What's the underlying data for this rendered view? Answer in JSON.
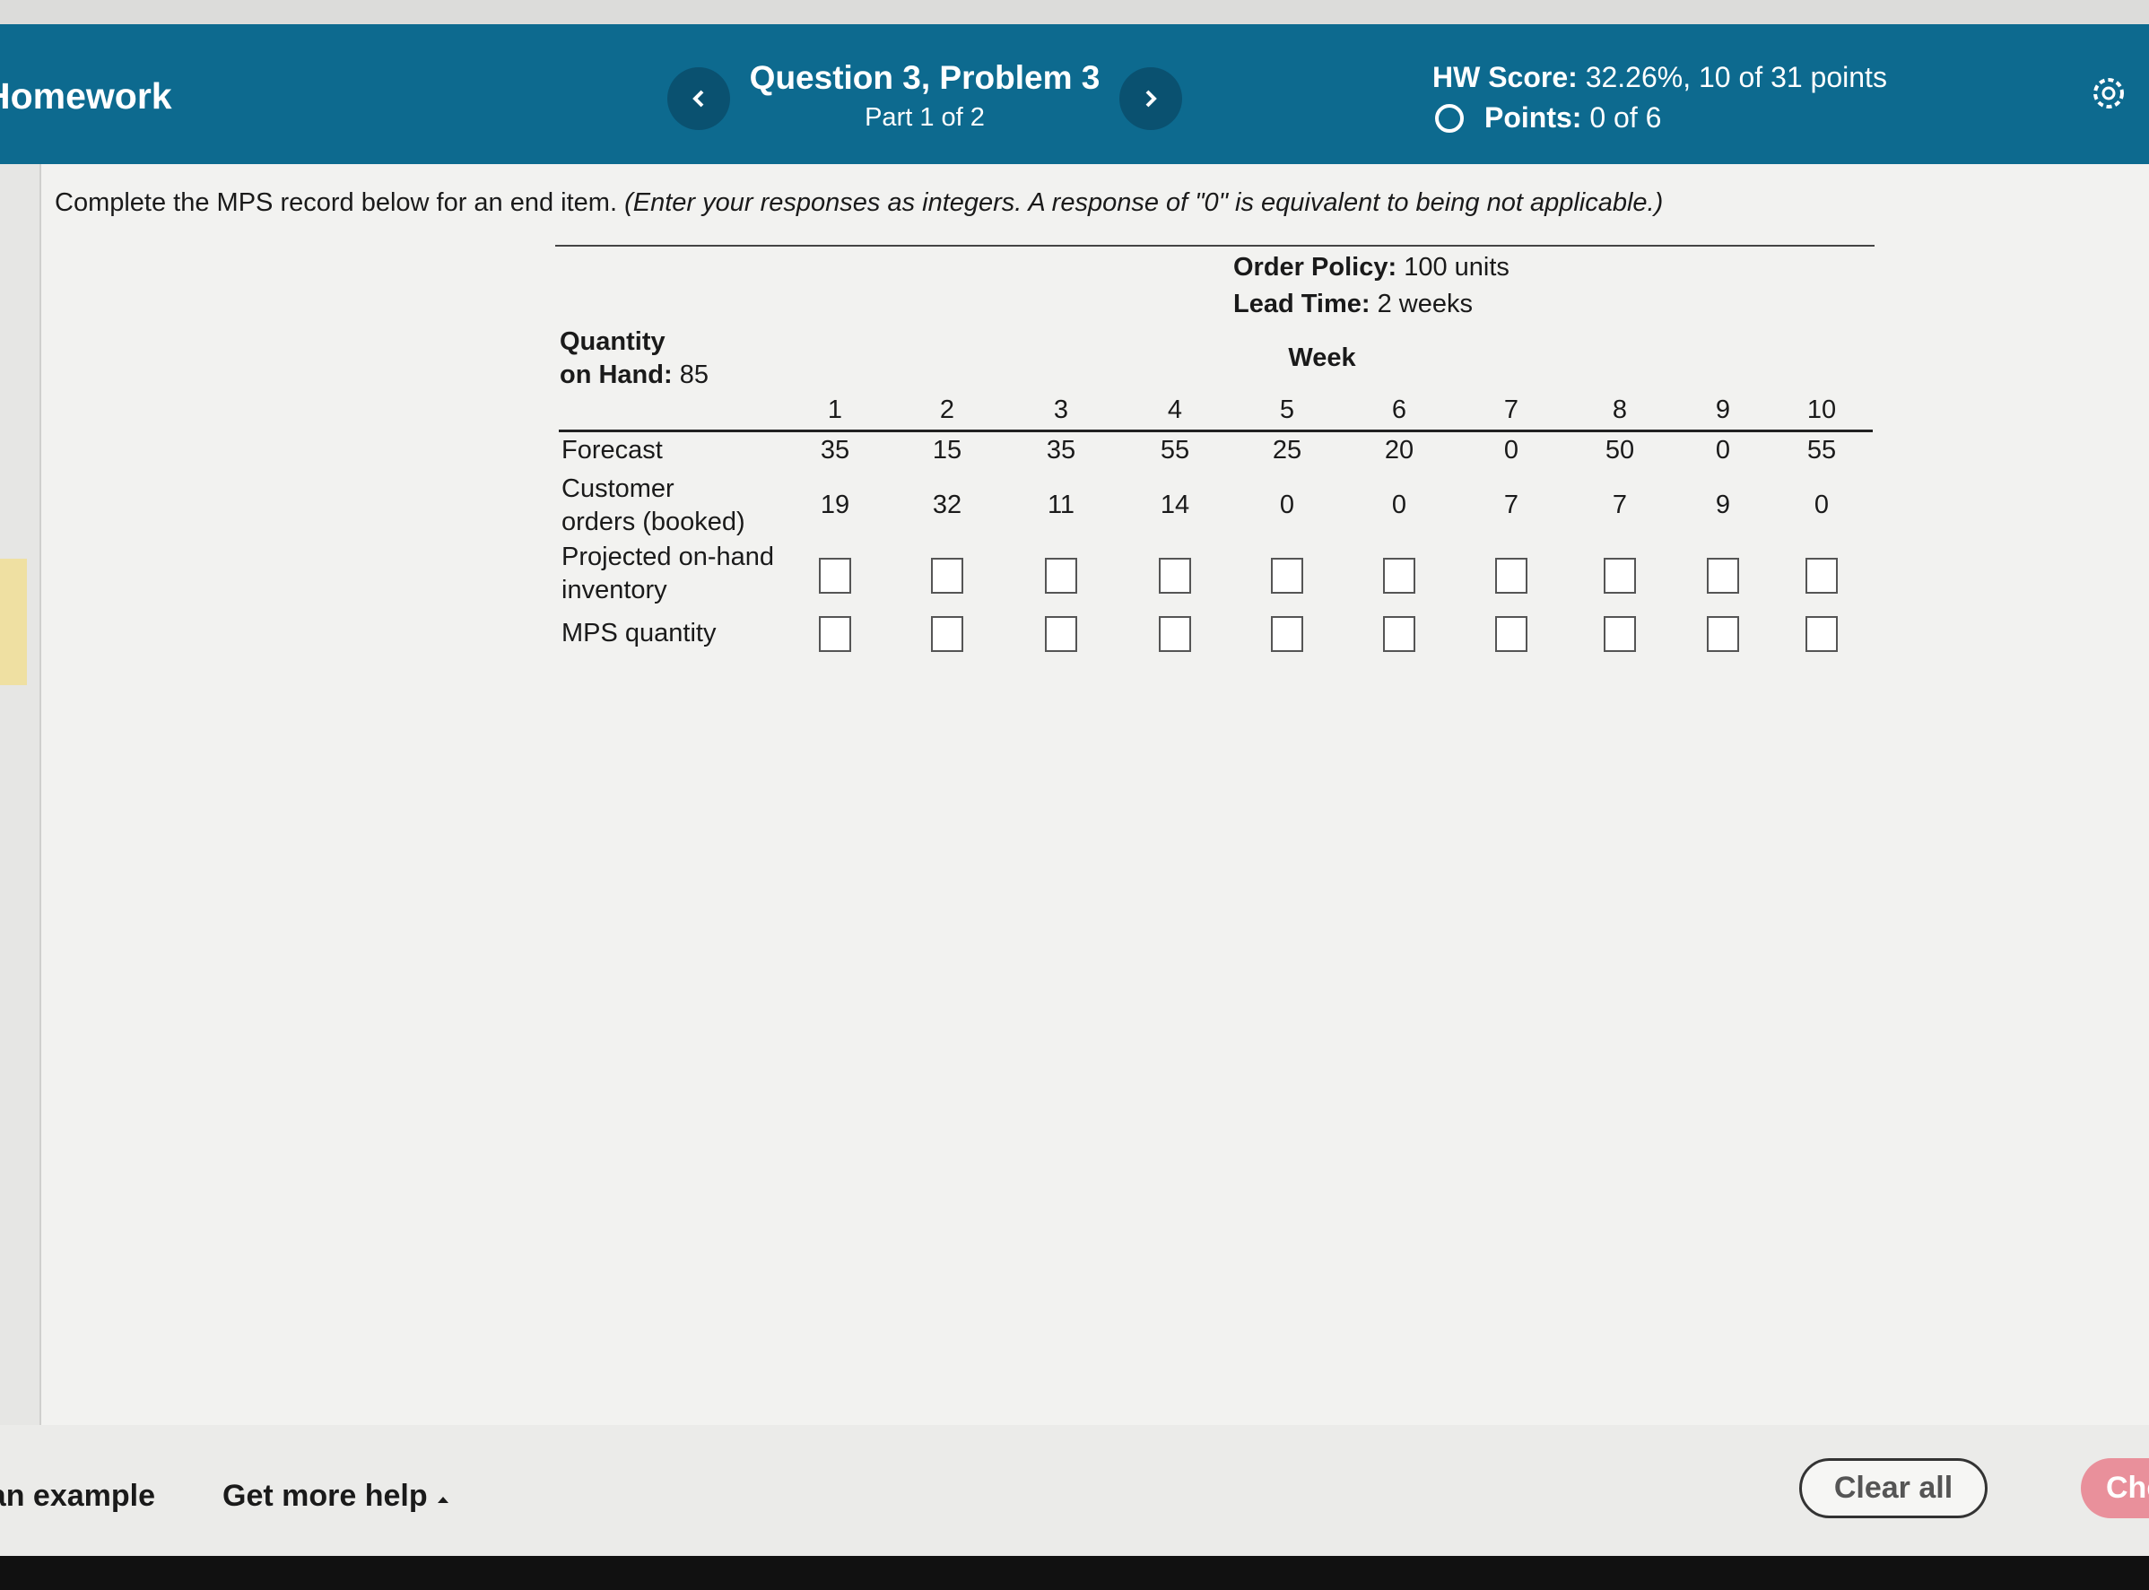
{
  "header": {
    "course": "Homework",
    "question": "Question 3, Problem 3",
    "part": "Part 1 of 2",
    "hw_score_label": "HW Score:",
    "hw_score": "32.26%, 10 of 31 points",
    "points_label": "Points:",
    "points": "0 of 6"
  },
  "instruction": {
    "text": "Complete the MPS record below for an end item.",
    "note": "(Enter your responses as integers. A response of \"0\" is equivalent to being not applicable.)"
  },
  "table": {
    "order_policy_label": "Order Policy:",
    "order_policy": "100 units",
    "lead_time_label": "Lead Time:",
    "lead_time": "2 weeks",
    "quantity_label": [
      "Quantity",
      "on Hand:"
    ],
    "quantity_on_hand": 85,
    "week_label": "Week",
    "weeks": [
      1,
      2,
      3,
      4,
      5,
      6,
      7,
      8,
      9,
      10
    ],
    "rows": [
      {
        "label": [
          "Forecast"
        ],
        "values": [
          35,
          15,
          35,
          55,
          25,
          20,
          0,
          50,
          0,
          55
        ]
      },
      {
        "label": [
          "Customer",
          "orders (booked)"
        ],
        "values": [
          19,
          32,
          11,
          14,
          0,
          0,
          7,
          7,
          9,
          0
        ]
      },
      {
        "label": [
          "Projected on-hand",
          "inventory"
        ]
      },
      {
        "label": [
          "MPS quantity"
        ]
      }
    ]
  },
  "footer": {
    "example": "View an example",
    "help": "Get more help",
    "clear": "Clear all",
    "check": "Check answer"
  }
}
